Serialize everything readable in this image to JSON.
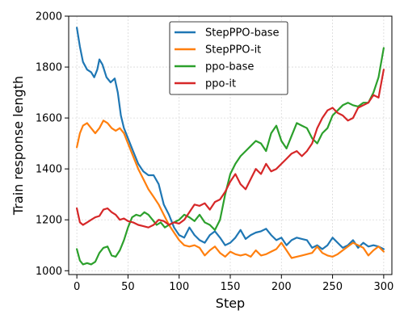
{
  "chart_data": {
    "type": "line",
    "xlabel": "Step",
    "ylabel": "Train response length",
    "xlim": [
      -8,
      308
    ],
    "ylim": [
      985,
      2000
    ],
    "xticks": [
      0,
      50,
      100,
      150,
      200,
      250,
      300
    ],
    "yticks": [
      1000,
      1200,
      1400,
      1600,
      1800,
      2000
    ],
    "grid": true,
    "legend_position": "top-center",
    "series": [
      {
        "name": "StepPPO-base",
        "color": "#1f77b4",
        "points": [
          [
            0,
            1955
          ],
          [
            3,
            1880
          ],
          [
            6,
            1820
          ],
          [
            10,
            1790
          ],
          [
            14,
            1780
          ],
          [
            17,
            1760
          ],
          [
            20,
            1790
          ],
          [
            22,
            1830
          ],
          [
            25,
            1810
          ],
          [
            29,
            1760
          ],
          [
            33,
            1740
          ],
          [
            37,
            1755
          ],
          [
            40,
            1700
          ],
          [
            43,
            1610
          ],
          [
            46,
            1560
          ],
          [
            50,
            1520
          ],
          [
            55,
            1470
          ],
          [
            60,
            1420
          ],
          [
            65,
            1390
          ],
          [
            70,
            1375
          ],
          [
            75,
            1375
          ],
          [
            80,
            1340
          ],
          [
            85,
            1260
          ],
          [
            90,
            1220
          ],
          [
            95,
            1170
          ],
          [
            100,
            1140
          ],
          [
            105,
            1130
          ],
          [
            110,
            1170
          ],
          [
            115,
            1140
          ],
          [
            120,
            1120
          ],
          [
            125,
            1110
          ],
          [
            130,
            1140
          ],
          [
            135,
            1155
          ],
          [
            140,
            1130
          ],
          [
            145,
            1100
          ],
          [
            150,
            1110
          ],
          [
            155,
            1130
          ],
          [
            160,
            1160
          ],
          [
            165,
            1125
          ],
          [
            170,
            1140
          ],
          [
            175,
            1150
          ],
          [
            180,
            1155
          ],
          [
            185,
            1165
          ],
          [
            190,
            1140
          ],
          [
            195,
            1120
          ],
          [
            200,
            1130
          ],
          [
            205,
            1100
          ],
          [
            210,
            1120
          ],
          [
            215,
            1130
          ],
          [
            220,
            1125
          ],
          [
            225,
            1120
          ],
          [
            230,
            1090
          ],
          [
            235,
            1100
          ],
          [
            240,
            1085
          ],
          [
            245,
            1100
          ],
          [
            250,
            1130
          ],
          [
            255,
            1110
          ],
          [
            260,
            1090
          ],
          [
            265,
            1100
          ],
          [
            270,
            1120
          ],
          [
            275,
            1090
          ],
          [
            280,
            1110
          ],
          [
            285,
            1095
          ],
          [
            290,
            1100
          ],
          [
            295,
            1095
          ],
          [
            300,
            1085
          ]
        ]
      },
      {
        "name": "StepPPO-it",
        "color": "#ff7f0e",
        "points": [
          [
            0,
            1485
          ],
          [
            3,
            1540
          ],
          [
            6,
            1570
          ],
          [
            10,
            1580
          ],
          [
            14,
            1560
          ],
          [
            18,
            1540
          ],
          [
            22,
            1560
          ],
          [
            26,
            1590
          ],
          [
            30,
            1580
          ],
          [
            34,
            1560
          ],
          [
            38,
            1550
          ],
          [
            42,
            1560
          ],
          [
            46,
            1540
          ],
          [
            50,
            1500
          ],
          [
            55,
            1450
          ],
          [
            60,
            1400
          ],
          [
            65,
            1360
          ],
          [
            70,
            1320
          ],
          [
            75,
            1290
          ],
          [
            80,
            1260
          ],
          [
            85,
            1220
          ],
          [
            90,
            1180
          ],
          [
            95,
            1150
          ],
          [
            100,
            1120
          ],
          [
            105,
            1100
          ],
          [
            110,
            1095
          ],
          [
            115,
            1100
          ],
          [
            120,
            1090
          ],
          [
            125,
            1060
          ],
          [
            130,
            1080
          ],
          [
            135,
            1095
          ],
          [
            140,
            1070
          ],
          [
            145,
            1055
          ],
          [
            150,
            1075
          ],
          [
            155,
            1065
          ],
          [
            160,
            1060
          ],
          [
            165,
            1065
          ],
          [
            170,
            1055
          ],
          [
            175,
            1080
          ],
          [
            180,
            1060
          ],
          [
            185,
            1065
          ],
          [
            190,
            1075
          ],
          [
            195,
            1085
          ],
          [
            200,
            1110
          ],
          [
            205,
            1080
          ],
          [
            210,
            1050
          ],
          [
            215,
            1055
          ],
          [
            220,
            1060
          ],
          [
            225,
            1065
          ],
          [
            230,
            1070
          ],
          [
            235,
            1095
          ],
          [
            240,
            1070
          ],
          [
            245,
            1060
          ],
          [
            250,
            1055
          ],
          [
            255,
            1065
          ],
          [
            260,
            1080
          ],
          [
            265,
            1095
          ],
          [
            270,
            1110
          ],
          [
            275,
            1100
          ],
          [
            280,
            1090
          ],
          [
            285,
            1060
          ],
          [
            290,
            1080
          ],
          [
            295,
            1095
          ],
          [
            300,
            1075
          ]
        ]
      },
      {
        "name": "ppo-base",
        "color": "#2ca02c",
        "points": [
          [
            0,
            1085
          ],
          [
            3,
            1040
          ],
          [
            6,
            1025
          ],
          [
            10,
            1030
          ],
          [
            14,
            1025
          ],
          [
            18,
            1035
          ],
          [
            22,
            1070
          ],
          [
            26,
            1090
          ],
          [
            30,
            1095
          ],
          [
            34,
            1060
          ],
          [
            38,
            1055
          ],
          [
            42,
            1080
          ],
          [
            46,
            1120
          ],
          [
            50,
            1170
          ],
          [
            54,
            1210
          ],
          [
            58,
            1220
          ],
          [
            62,
            1215
          ],
          [
            66,
            1230
          ],
          [
            70,
            1220
          ],
          [
            74,
            1200
          ],
          [
            78,
            1180
          ],
          [
            82,
            1190
          ],
          [
            86,
            1170
          ],
          [
            90,
            1180
          ],
          [
            95,
            1190
          ],
          [
            100,
            1200
          ],
          [
            105,
            1220
          ],
          [
            110,
            1210
          ],
          [
            115,
            1195
          ],
          [
            120,
            1220
          ],
          [
            125,
            1190
          ],
          [
            130,
            1180
          ],
          [
            135,
            1160
          ],
          [
            140,
            1200
          ],
          [
            145,
            1300
          ],
          [
            150,
            1380
          ],
          [
            155,
            1420
          ],
          [
            160,
            1450
          ],
          [
            165,
            1470
          ],
          [
            170,
            1490
          ],
          [
            175,
            1510
          ],
          [
            180,
            1500
          ],
          [
            185,
            1470
          ],
          [
            190,
            1540
          ],
          [
            195,
            1570
          ],
          [
            200,
            1510
          ],
          [
            205,
            1480
          ],
          [
            210,
            1530
          ],
          [
            215,
            1580
          ],
          [
            220,
            1570
          ],
          [
            225,
            1560
          ],
          [
            230,
            1520
          ],
          [
            235,
            1500
          ],
          [
            240,
            1540
          ],
          [
            245,
            1560
          ],
          [
            250,
            1610
          ],
          [
            255,
            1630
          ],
          [
            260,
            1650
          ],
          [
            265,
            1660
          ],
          [
            270,
            1650
          ],
          [
            275,
            1645
          ],
          [
            280,
            1660
          ],
          [
            285,
            1660
          ],
          [
            290,
            1700
          ],
          [
            295,
            1760
          ],
          [
            300,
            1875
          ]
        ]
      },
      {
        "name": "ppo-it",
        "color": "#d62728",
        "points": [
          [
            0,
            1245
          ],
          [
            3,
            1190
          ],
          [
            6,
            1180
          ],
          [
            10,
            1190
          ],
          [
            14,
            1200
          ],
          [
            18,
            1210
          ],
          [
            22,
            1215
          ],
          [
            26,
            1240
          ],
          [
            30,
            1245
          ],
          [
            34,
            1230
          ],
          [
            38,
            1220
          ],
          [
            42,
            1200
          ],
          [
            46,
            1205
          ],
          [
            50,
            1195
          ],
          [
            55,
            1190
          ],
          [
            60,
            1180
          ],
          [
            65,
            1175
          ],
          [
            70,
            1170
          ],
          [
            75,
            1180
          ],
          [
            80,
            1200
          ],
          [
            85,
            1195
          ],
          [
            90,
            1180
          ],
          [
            95,
            1190
          ],
          [
            100,
            1185
          ],
          [
            105,
            1200
          ],
          [
            110,
            1230
          ],
          [
            115,
            1260
          ],
          [
            120,
            1255
          ],
          [
            125,
            1265
          ],
          [
            130,
            1240
          ],
          [
            135,
            1270
          ],
          [
            140,
            1280
          ],
          [
            145,
            1310
          ],
          [
            150,
            1350
          ],
          [
            155,
            1380
          ],
          [
            160,
            1340
          ],
          [
            165,
            1320
          ],
          [
            170,
            1360
          ],
          [
            175,
            1400
          ],
          [
            180,
            1380
          ],
          [
            185,
            1420
          ],
          [
            190,
            1390
          ],
          [
            195,
            1400
          ],
          [
            200,
            1420
          ],
          [
            205,
            1440
          ],
          [
            210,
            1460
          ],
          [
            215,
            1470
          ],
          [
            220,
            1450
          ],
          [
            225,
            1470
          ],
          [
            230,
            1500
          ],
          [
            235,
            1560
          ],
          [
            240,
            1600
          ],
          [
            245,
            1630
          ],
          [
            250,
            1640
          ],
          [
            255,
            1620
          ],
          [
            260,
            1610
          ],
          [
            265,
            1590
          ],
          [
            270,
            1600
          ],
          [
            275,
            1640
          ],
          [
            280,
            1650
          ],
          [
            285,
            1660
          ],
          [
            290,
            1690
          ],
          [
            295,
            1680
          ],
          [
            300,
            1790
          ]
        ]
      }
    ]
  }
}
